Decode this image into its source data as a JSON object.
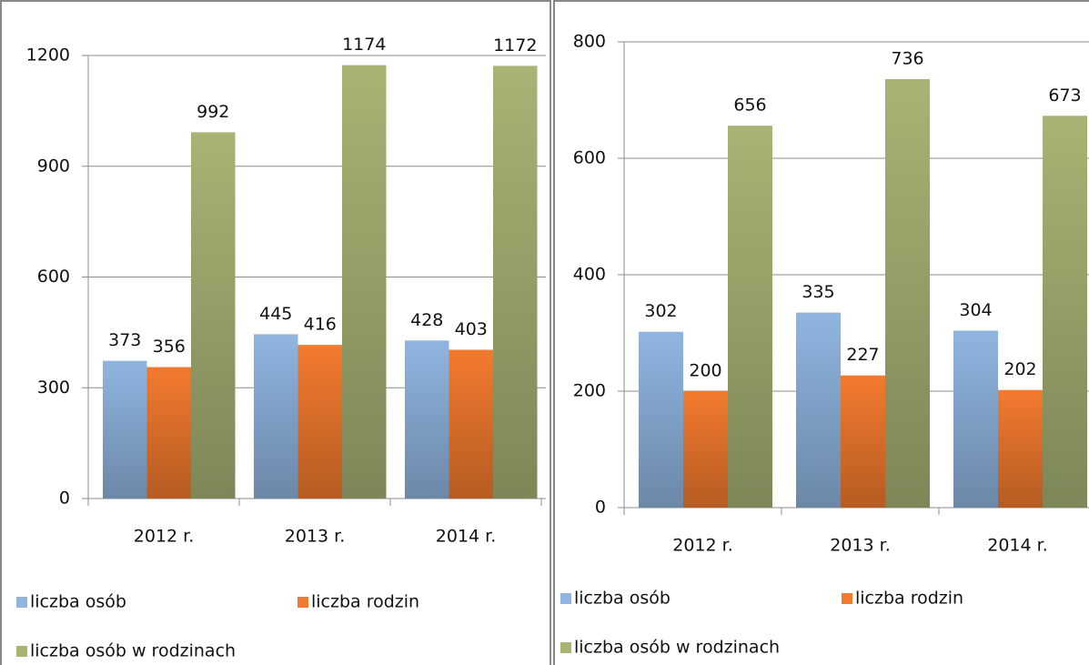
{
  "chart_data": [
    {
      "type": "bar",
      "categories": [
        "2012 r.",
        "2013 r.",
        "2014 r."
      ],
      "series": [
        {
          "name": "liczba osób",
          "color": "#8fb5e0",
          "values": [
            373,
            445,
            428
          ]
        },
        {
          "name": "liczba rodzin",
          "color": "#f27a2e",
          "values": [
            356,
            416,
            403
          ]
        },
        {
          "name": "liczba osób w rodzinach",
          "color": "#a8b374",
          "values": [
            992,
            1174,
            1172
          ]
        }
      ],
      "ylim": [
        0,
        1200
      ],
      "yticks": [
        0,
        300,
        600,
        900,
        1200
      ],
      "grid": true
    },
    {
      "type": "bar",
      "categories": [
        "2012 r.",
        "2013 r.",
        "2014 r."
      ],
      "series": [
        {
          "name": "liczba osób",
          "color": "#8fb5e0",
          "values": [
            302,
            335,
            304
          ]
        },
        {
          "name": "liczba rodzin",
          "color": "#f27a2e",
          "values": [
            200,
            227,
            202
          ]
        },
        {
          "name": "liczba osób w rodzinach",
          "color": "#a8b374",
          "values": [
            656,
            736,
            673
          ]
        }
      ],
      "ylim": [
        0,
        800
      ],
      "yticks": [
        0,
        200,
        400,
        600,
        800
      ],
      "grid": true
    }
  ]
}
